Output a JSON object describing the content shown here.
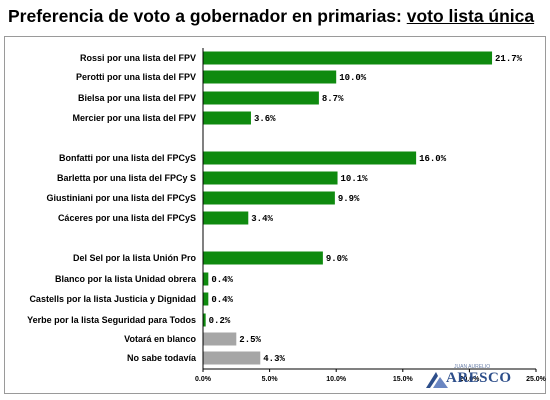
{
  "title": {
    "main": "Preferencia de voto a gobernador en primarias: ",
    "underlined": "voto lista única"
  },
  "logo": {
    "small_text": "JUAN AURELIO",
    "word": "ARESCO"
  },
  "colors": {
    "bar_green": "#0f8a0f",
    "bar_gray": "#a6a6a6"
  },
  "chart_data": {
    "type": "bar",
    "orientation": "horizontal",
    "title": "Preferencia de voto a gobernador en primarias: voto lista única",
    "xlim": [
      0,
      25
    ],
    "x_ticks": [
      "0.0%",
      "5.0%",
      "10.0%",
      "15.0%",
      "20.0%",
      "25.0%"
    ],
    "grid": false,
    "categories": [
      "Rossi por una lista del FPV",
      "Perotti por una lista del FPV",
      "Bielsa por una lista del FPV",
      "Mercier por una lista del FPV",
      "Bonfatti por una lista del FPCyS",
      "Barletta por una lista del FPCy S",
      "Giustiniani por una lista del FPCyS",
      "Cáceres por una lista del FPCyS",
      "Del Sel por la lista Unión Pro",
      "Blanco por la lista Unidad obrera",
      "Castells por la lista Justicia y Dignidad",
      "Yerbe por la lista Seguridad para Todos",
      "Votará en blanco",
      "No sabe todavía"
    ],
    "values": [
      21.7,
      10.0,
      8.7,
      3.6,
      16.0,
      10.1,
      9.9,
      3.4,
      9.0,
      0.4,
      0.4,
      0.2,
      2.5,
      4.3
    ],
    "value_labels": [
      "21.7%",
      "10.0%",
      "8.7%",
      "3.6%",
      "16.0%",
      "10.1%",
      "9.9%",
      "3.4%",
      "9.0%",
      "0.4%",
      "0.4%",
      "0.2%",
      "2.5%",
      "4.3%"
    ],
    "bar_colors": [
      "green",
      "green",
      "green",
      "green",
      "green",
      "green",
      "green",
      "green",
      "green",
      "green",
      "green",
      "green",
      "gray",
      "gray"
    ]
  }
}
